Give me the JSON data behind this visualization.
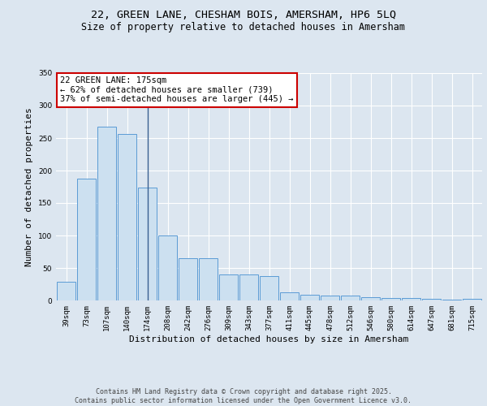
{
  "title1": "22, GREEN LANE, CHESHAM BOIS, AMERSHAM, HP6 5LQ",
  "title2": "Size of property relative to detached houses in Amersham",
  "xlabel": "Distribution of detached houses by size in Amersham",
  "ylabel": "Number of detached properties",
  "categories": [
    "39sqm",
    "73sqm",
    "107sqm",
    "140sqm",
    "174sqm",
    "208sqm",
    "242sqm",
    "276sqm",
    "309sqm",
    "343sqm",
    "377sqm",
    "411sqm",
    "445sqm",
    "478sqm",
    "512sqm",
    "546sqm",
    "580sqm",
    "614sqm",
    "647sqm",
    "681sqm",
    "715sqm"
  ],
  "values": [
    29,
    188,
    268,
    256,
    174,
    100,
    65,
    65,
    40,
    40,
    37,
    12,
    9,
    8,
    7,
    5,
    4,
    4,
    2,
    1,
    2
  ],
  "bar_color": "#cce0f0",
  "bar_edge_color": "#5b9bd5",
  "vline_x_index": 4,
  "vline_color": "#3a6090",
  "annotation_text": "22 GREEN LANE: 175sqm\n← 62% of detached houses are smaller (739)\n37% of semi-detached houses are larger (445) →",
  "annotation_box_color": "#ffffff",
  "annotation_box_edge_color": "#cc0000",
  "ylim": [
    0,
    350
  ],
  "yticks": [
    0,
    50,
    100,
    150,
    200,
    250,
    300,
    350
  ],
  "background_color": "#dce6f0",
  "plot_bg_color": "#dce6f0",
  "footer_line1": "Contains HM Land Registry data © Crown copyright and database right 2025.",
  "footer_line2": "Contains public sector information licensed under the Open Government Licence v3.0.",
  "title1_fontsize": 9.5,
  "title2_fontsize": 8.5,
  "xlabel_fontsize": 8,
  "ylabel_fontsize": 8,
  "tick_fontsize": 6.5,
  "footer_fontsize": 6,
  "annotation_fontsize": 7.5
}
